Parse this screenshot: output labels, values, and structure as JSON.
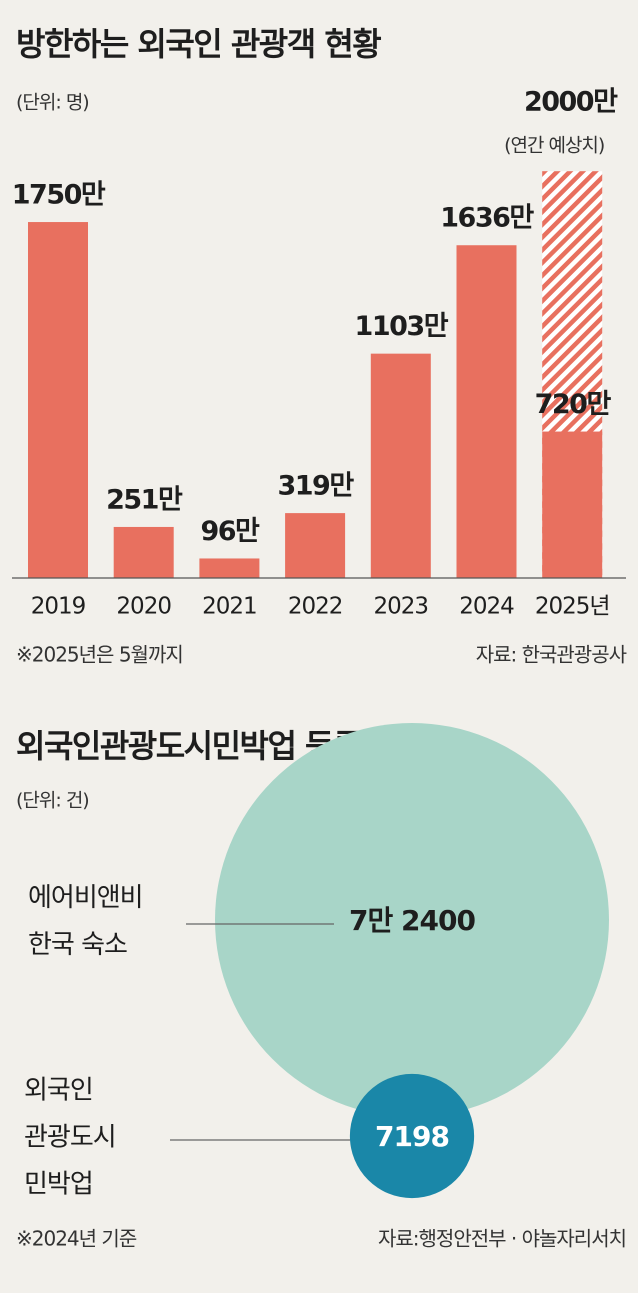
{
  "chart_data": [
    {
      "type": "bar",
      "title": "방한하는 외국인 관광객 현황",
      "unit": "(단위: 명)",
      "categories": [
        "2019",
        "2020",
        "2021",
        "2022",
        "2023",
        "2024",
        "2025년"
      ],
      "values": [
        1750,
        251,
        96,
        319,
        1103,
        1636,
        720
      ],
      "value_labels": [
        "1750만",
        "251만",
        "96만",
        "319만",
        "1103만",
        "1636만",
        "720만"
      ],
      "color": "#e8705f",
      "projection": {
        "value": 2000,
        "label": "2000만",
        "note": "(연간 예상치)"
      },
      "note": "※2025년은 5월까지",
      "source": "자료: 한국관광공사"
    },
    {
      "type": "bubble",
      "title": "외국인관광도시민박업 등록 현황",
      "unit": "(단위: 건)",
      "items": [
        {
          "name": [
            "에어비앤비",
            "한국 숙소"
          ],
          "value": 72400,
          "value_label": "7만 2400",
          "color": "#a8d5c8"
        },
        {
          "name": [
            "외국인",
            "관광도시",
            "민박업"
          ],
          "value": 7198,
          "value_label": "7198",
          "color": "#1a87a8"
        }
      ],
      "note": "※2024년 기준",
      "source": "자료:행정안전부 · 야놀자리서치"
    }
  ]
}
